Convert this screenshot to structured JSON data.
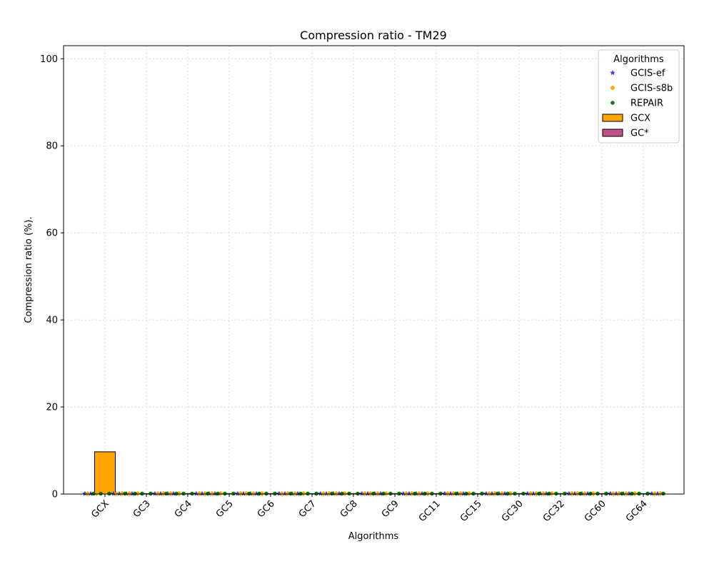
{
  "chart_data": {
    "type": "bar",
    "title": "Compression ratio -  TM29",
    "xlabel": "Algorithms",
    "ylabel": "Compression ratio (%).",
    "ylim": [
      0,
      103
    ],
    "yticks": [
      0,
      20,
      40,
      60,
      80,
      100
    ],
    "grid": true,
    "categories": [
      "GCX",
      "GC3",
      "GC4",
      "GC5",
      "GC6",
      "GC7",
      "GC8",
      "GC9",
      "GC11",
      "GC15",
      "GC30",
      "GC32",
      "GC60",
      "GC64"
    ],
    "series": [
      {
        "name": "GCX",
        "kind": "bar",
        "color": "#ffa500",
        "values": [
          9.7,
          null,
          null,
          null,
          null,
          null,
          null,
          null,
          null,
          null,
          null,
          null,
          null,
          null
        ]
      },
      {
        "name": "GC*",
        "kind": "bar",
        "color": "#c0508a",
        "values": [
          null,
          0.05,
          0.05,
          0.05,
          0.05,
          0.05,
          0.05,
          0.05,
          0.05,
          0.05,
          0.05,
          0.05,
          0.05,
          0.05
        ]
      },
      {
        "name": "GCIS-ef",
        "kind": "scatter",
        "marker": "star",
        "color": "#3a3ae0",
        "values": [
          0.1,
          0.1,
          0.1,
          0.1,
          0.1,
          0.1,
          0.1,
          0.1,
          0.1,
          0.1,
          0.1,
          0.1,
          0.1,
          0.1
        ]
      },
      {
        "name": "GCIS-s8b",
        "kind": "scatter",
        "marker": "diamond",
        "color": "#ffa500",
        "values": [
          0.1,
          0.1,
          0.1,
          0.1,
          0.1,
          0.1,
          0.1,
          0.1,
          0.1,
          0.1,
          0.1,
          0.1,
          0.1,
          0.1
        ]
      },
      {
        "name": "REPAIR",
        "kind": "scatter",
        "marker": "circle",
        "color": "#0a7d0a",
        "values": [
          0.1,
          0.1,
          0.1,
          0.1,
          0.1,
          0.1,
          0.1,
          0.1,
          0.1,
          0.1,
          0.1,
          0.1,
          0.1,
          0.1
        ]
      }
    ],
    "legend": {
      "title": "Algorithms",
      "placement": "top-right",
      "entries": [
        {
          "label": "GCIS-ef",
          "marker": "star",
          "color": "#3a3ae0"
        },
        {
          "label": "GCIS-s8b",
          "marker": "diamond",
          "color": "#ffa500"
        },
        {
          "label": "REPAIR",
          "marker": "circle",
          "color": "#0a7d0a"
        },
        {
          "label": "GCX",
          "marker": "bar",
          "color": "#ffa500"
        },
        {
          "label": "GC*",
          "marker": "bar",
          "color": "#c0508a"
        }
      ]
    }
  }
}
